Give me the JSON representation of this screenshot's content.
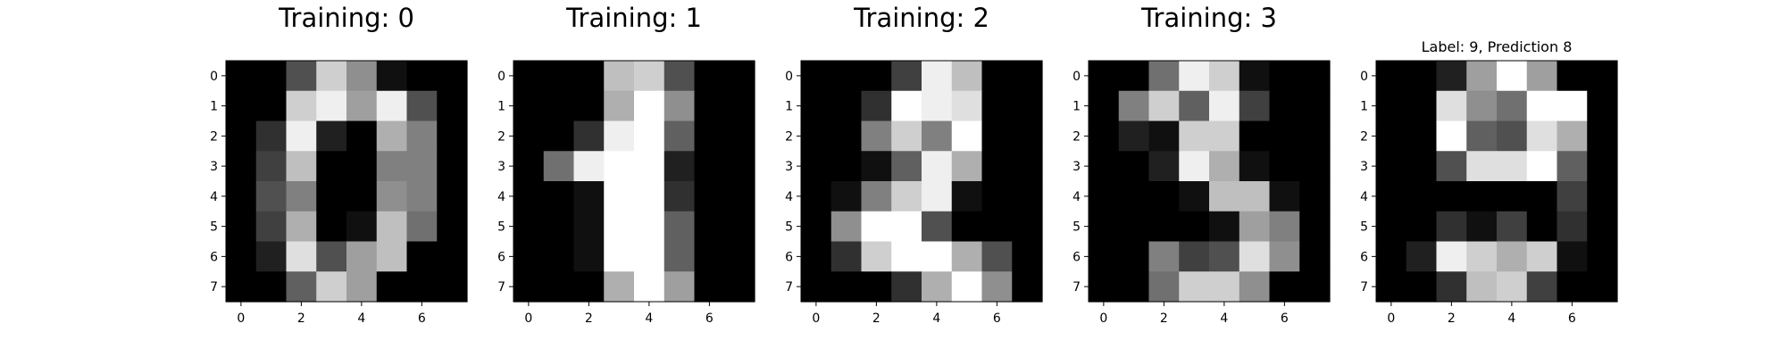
{
  "chart_data": [
    {
      "type": "heatmap",
      "title": "Training: 0",
      "colormap": "gray",
      "value_range": [
        0,
        16
      ],
      "xticks": [
        "0",
        "2",
        "4",
        "6"
      ],
      "yticks": [
        "0",
        "1",
        "2",
        "3",
        "4",
        "5",
        "6",
        "7"
      ],
      "values": [
        [
          0,
          0,
          5,
          13,
          9,
          1,
          0,
          0
        ],
        [
          0,
          0,
          13,
          15,
          10,
          15,
          5,
          0
        ],
        [
          0,
          3,
          15,
          2,
          0,
          11,
          8,
          0
        ],
        [
          0,
          4,
          12,
          0,
          0,
          8,
          8,
          0
        ],
        [
          0,
          5,
          8,
          0,
          0,
          9,
          8,
          0
        ],
        [
          0,
          4,
          11,
          0,
          1,
          12,
          7,
          0
        ],
        [
          0,
          2,
          14,
          5,
          10,
          12,
          0,
          0
        ],
        [
          0,
          0,
          6,
          13,
          10,
          0,
          0,
          0
        ]
      ]
    },
    {
      "type": "heatmap",
      "title": "Training: 1",
      "colormap": "gray",
      "value_range": [
        0,
        16
      ],
      "xticks": [
        "0",
        "2",
        "4",
        "6"
      ],
      "yticks": [
        "0",
        "1",
        "2",
        "3",
        "4",
        "5",
        "6",
        "7"
      ],
      "values": [
        [
          0,
          0,
          0,
          12,
          13,
          5,
          0,
          0
        ],
        [
          0,
          0,
          0,
          11,
          16,
          9,
          0,
          0
        ],
        [
          0,
          0,
          3,
          15,
          16,
          6,
          0,
          0
        ],
        [
          0,
          7,
          15,
          16,
          16,
          2,
          0,
          0
        ],
        [
          0,
          0,
          1,
          16,
          16,
          3,
          0,
          0
        ],
        [
          0,
          0,
          1,
          16,
          16,
          6,
          0,
          0
        ],
        [
          0,
          0,
          1,
          16,
          16,
          6,
          0,
          0
        ],
        [
          0,
          0,
          0,
          11,
          16,
          10,
          0,
          0
        ]
      ]
    },
    {
      "type": "heatmap",
      "title": "Training: 2",
      "colormap": "gray",
      "value_range": [
        0,
        16
      ],
      "xticks": [
        "0",
        "2",
        "4",
        "6"
      ],
      "yticks": [
        "0",
        "1",
        "2",
        "3",
        "4",
        "5",
        "6",
        "7"
      ],
      "values": [
        [
          0,
          0,
          0,
          4,
          15,
          12,
          0,
          0
        ],
        [
          0,
          0,
          3,
          16,
          15,
          14,
          0,
          0
        ],
        [
          0,
          0,
          8,
          13,
          8,
          16,
          0,
          0
        ],
        [
          0,
          0,
          1,
          6,
          15,
          11,
          0,
          0
        ],
        [
          0,
          1,
          8,
          13,
          15,
          1,
          0,
          0
        ],
        [
          0,
          9,
          16,
          16,
          5,
          0,
          0,
          0
        ],
        [
          0,
          3,
          13,
          16,
          16,
          11,
          5,
          0
        ],
        [
          0,
          0,
          0,
          3,
          11,
          16,
          9,
          0
        ]
      ]
    },
    {
      "type": "heatmap",
      "title": "Training: 3",
      "colormap": "gray",
      "value_range": [
        0,
        16
      ],
      "xticks": [
        "0",
        "2",
        "4",
        "6"
      ],
      "yticks": [
        "0",
        "1",
        "2",
        "3",
        "4",
        "5",
        "6",
        "7"
      ],
      "values": [
        [
          0,
          0,
          7,
          15,
          13,
          1,
          0,
          0
        ],
        [
          0,
          8,
          13,
          6,
          15,
          4,
          0,
          0
        ],
        [
          0,
          2,
          1,
          13,
          13,
          0,
          0,
          0
        ],
        [
          0,
          0,
          2,
          15,
          11,
          1,
          0,
          0
        ],
        [
          0,
          0,
          0,
          1,
          12,
          12,
          1,
          0
        ],
        [
          0,
          0,
          0,
          0,
          1,
          10,
          8,
          0
        ],
        [
          0,
          0,
          8,
          4,
          5,
          14,
          9,
          0
        ],
        [
          0,
          0,
          7,
          13,
          13,
          9,
          0,
          0
        ]
      ]
    },
    {
      "type": "heatmap",
      "title": "Label: 9, Prediction 8",
      "colormap": "gray",
      "value_range": [
        0,
        16
      ],
      "xticks": [
        "0",
        "2",
        "4",
        "6"
      ],
      "yticks": [
        "0",
        "1",
        "2",
        "3",
        "4",
        "5",
        "6",
        "7"
      ],
      "values": [
        [
          0,
          0,
          2,
          10,
          16,
          10,
          0,
          0
        ],
        [
          0,
          0,
          14,
          9,
          7,
          16,
          16,
          0
        ],
        [
          0,
          0,
          16,
          6,
          5,
          14,
          11,
          0
        ],
        [
          0,
          0,
          5,
          14,
          14,
          16,
          6,
          0
        ],
        [
          0,
          0,
          0,
          0,
          0,
          0,
          4,
          0
        ],
        [
          0,
          0,
          3,
          1,
          4,
          0,
          3,
          0
        ],
        [
          0,
          2,
          15,
          13,
          11,
          13,
          1,
          0
        ],
        [
          0,
          0,
          3,
          12,
          13,
          4,
          0,
          0
        ]
      ]
    }
  ]
}
